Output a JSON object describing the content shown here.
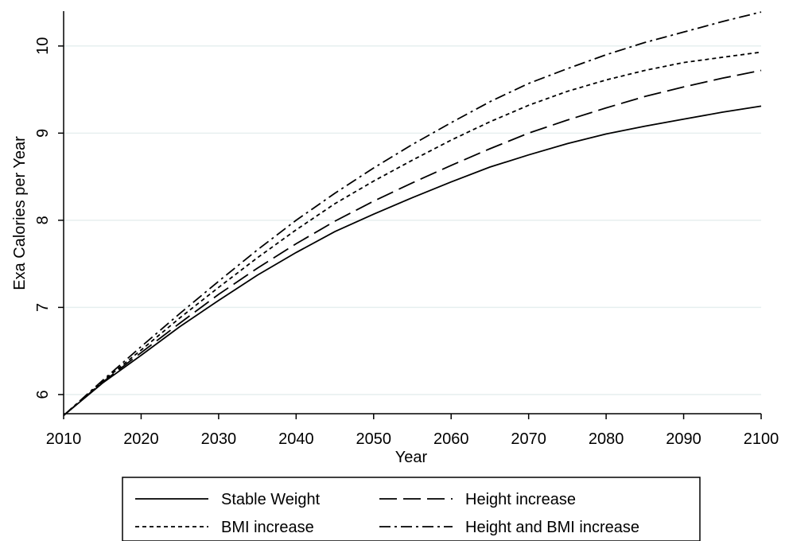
{
  "chart_data": {
    "type": "line",
    "xlabel": "Year",
    "ylabel": "Exa Calories per Year",
    "xlim": [
      2010,
      2100
    ],
    "ylim": [
      5.78,
      10.4
    ],
    "xticks": [
      2010,
      2020,
      2030,
      2040,
      2050,
      2060,
      2070,
      2080,
      2090,
      2100
    ],
    "yticks": [
      6,
      7,
      8,
      9,
      10
    ],
    "grid": "horizontal",
    "legend_position": "bottom",
    "x": [
      2010,
      2015,
      2020,
      2025,
      2030,
      2035,
      2040,
      2045,
      2050,
      2055,
      2060,
      2065,
      2070,
      2075,
      2080,
      2085,
      2090,
      2095,
      2100
    ],
    "series": [
      {
        "name": "Stable Weight",
        "dash": "solid",
        "values": [
          5.76,
          6.13,
          6.45,
          6.78,
          7.08,
          7.37,
          7.63,
          7.87,
          8.07,
          8.26,
          8.44,
          8.61,
          8.75,
          8.88,
          8.99,
          9.08,
          9.16,
          9.24,
          9.31
        ]
      },
      {
        "name": "Height increase",
        "dash": "longdash",
        "values": [
          5.76,
          6.14,
          6.48,
          6.82,
          7.15,
          7.45,
          7.73,
          7.99,
          8.22,
          8.43,
          8.63,
          8.82,
          9.0,
          9.15,
          9.29,
          9.42,
          9.53,
          9.63,
          9.72
        ]
      },
      {
        "name": "BMI increase",
        "dash": "shortdash",
        "values": [
          5.76,
          6.15,
          6.51,
          6.88,
          7.23,
          7.57,
          7.89,
          8.19,
          8.45,
          8.69,
          8.92,
          9.13,
          9.32,
          9.48,
          9.61,
          9.72,
          9.81,
          9.87,
          9.93
        ]
      },
      {
        "name": "Height and BMI increase",
        "dash": "dashdot",
        "values": [
          5.76,
          6.16,
          6.55,
          6.93,
          7.3,
          7.66,
          8.0,
          8.31,
          8.6,
          8.87,
          9.12,
          9.36,
          9.57,
          9.74,
          9.9,
          10.04,
          10.16,
          10.28,
          10.39
        ]
      }
    ]
  }
}
